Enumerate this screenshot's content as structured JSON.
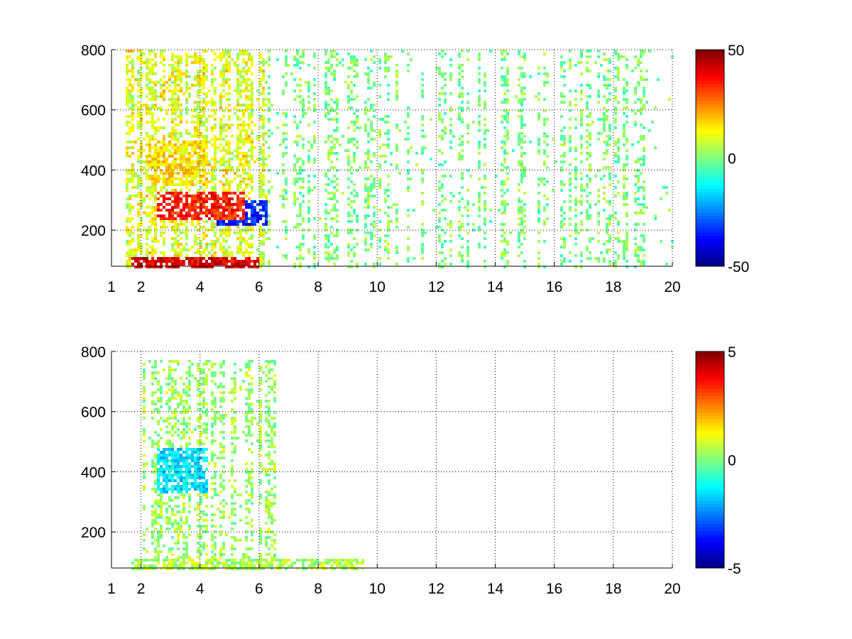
{
  "chart_data": [
    {
      "type": "heatmap",
      "title": "",
      "xlabel": "",
      "ylabel": "",
      "xlim": [
        1,
        20
      ],
      "ylim": [
        80,
        800
      ],
      "xticks": [
        1,
        2,
        4,
        6,
        8,
        10,
        12,
        14,
        16,
        18,
        20
      ],
      "yticks": [
        200,
        400,
        600,
        800
      ],
      "grid": true,
      "colormap": "jet",
      "colorbar": {
        "range": [
          -50,
          50
        ],
        "ticks": [
          -50,
          0,
          50
        ]
      },
      "regions": [
        {
          "desc": "dense band near bottom",
          "x": [
            1.6,
            6.0
          ],
          "y": [
            80,
            120
          ],
          "value": 40
        },
        {
          "desc": "positive arc",
          "x": [
            2.5,
            5.5
          ],
          "y": [
            240,
            330
          ],
          "value": 35
        },
        {
          "desc": "negative arc",
          "x": [
            4.5,
            6.2
          ],
          "y": [
            220,
            300
          ],
          "value": -35
        },
        {
          "desc": "positive band",
          "x": [
            2.2,
            4.2
          ],
          "y": [
            350,
            500
          ],
          "value": 15
        },
        {
          "desc": "sparse speckle",
          "x": [
            6,
            20
          ],
          "y": [
            80,
            800
          ],
          "value": 0
        }
      ]
    },
    {
      "type": "heatmap",
      "title": "",
      "xlabel": "",
      "ylabel": "",
      "xlim": [
        1,
        20
      ],
      "ylim": [
        80,
        800
      ],
      "xticks": [
        1,
        2,
        4,
        6,
        8,
        10,
        12,
        14,
        16,
        18,
        20
      ],
      "yticks": [
        200,
        400,
        600,
        800
      ],
      "grid": true,
      "colormap": "jet",
      "colorbar": {
        "range": [
          -5,
          5
        ],
        "ticks": [
          -5,
          0,
          5
        ]
      },
      "regions": [
        {
          "desc": "bottom band",
          "x": [
            1.6,
            9.5
          ],
          "y": [
            80,
            120
          ],
          "value": 0.5
        },
        {
          "desc": "negative patch",
          "x": [
            2.5,
            4.2
          ],
          "y": [
            330,
            480
          ],
          "value": -1.5
        },
        {
          "desc": "near-zero scatter",
          "x": [
            2,
            6.5
          ],
          "y": [
            80,
            780
          ],
          "value": 0.3
        }
      ]
    }
  ]
}
